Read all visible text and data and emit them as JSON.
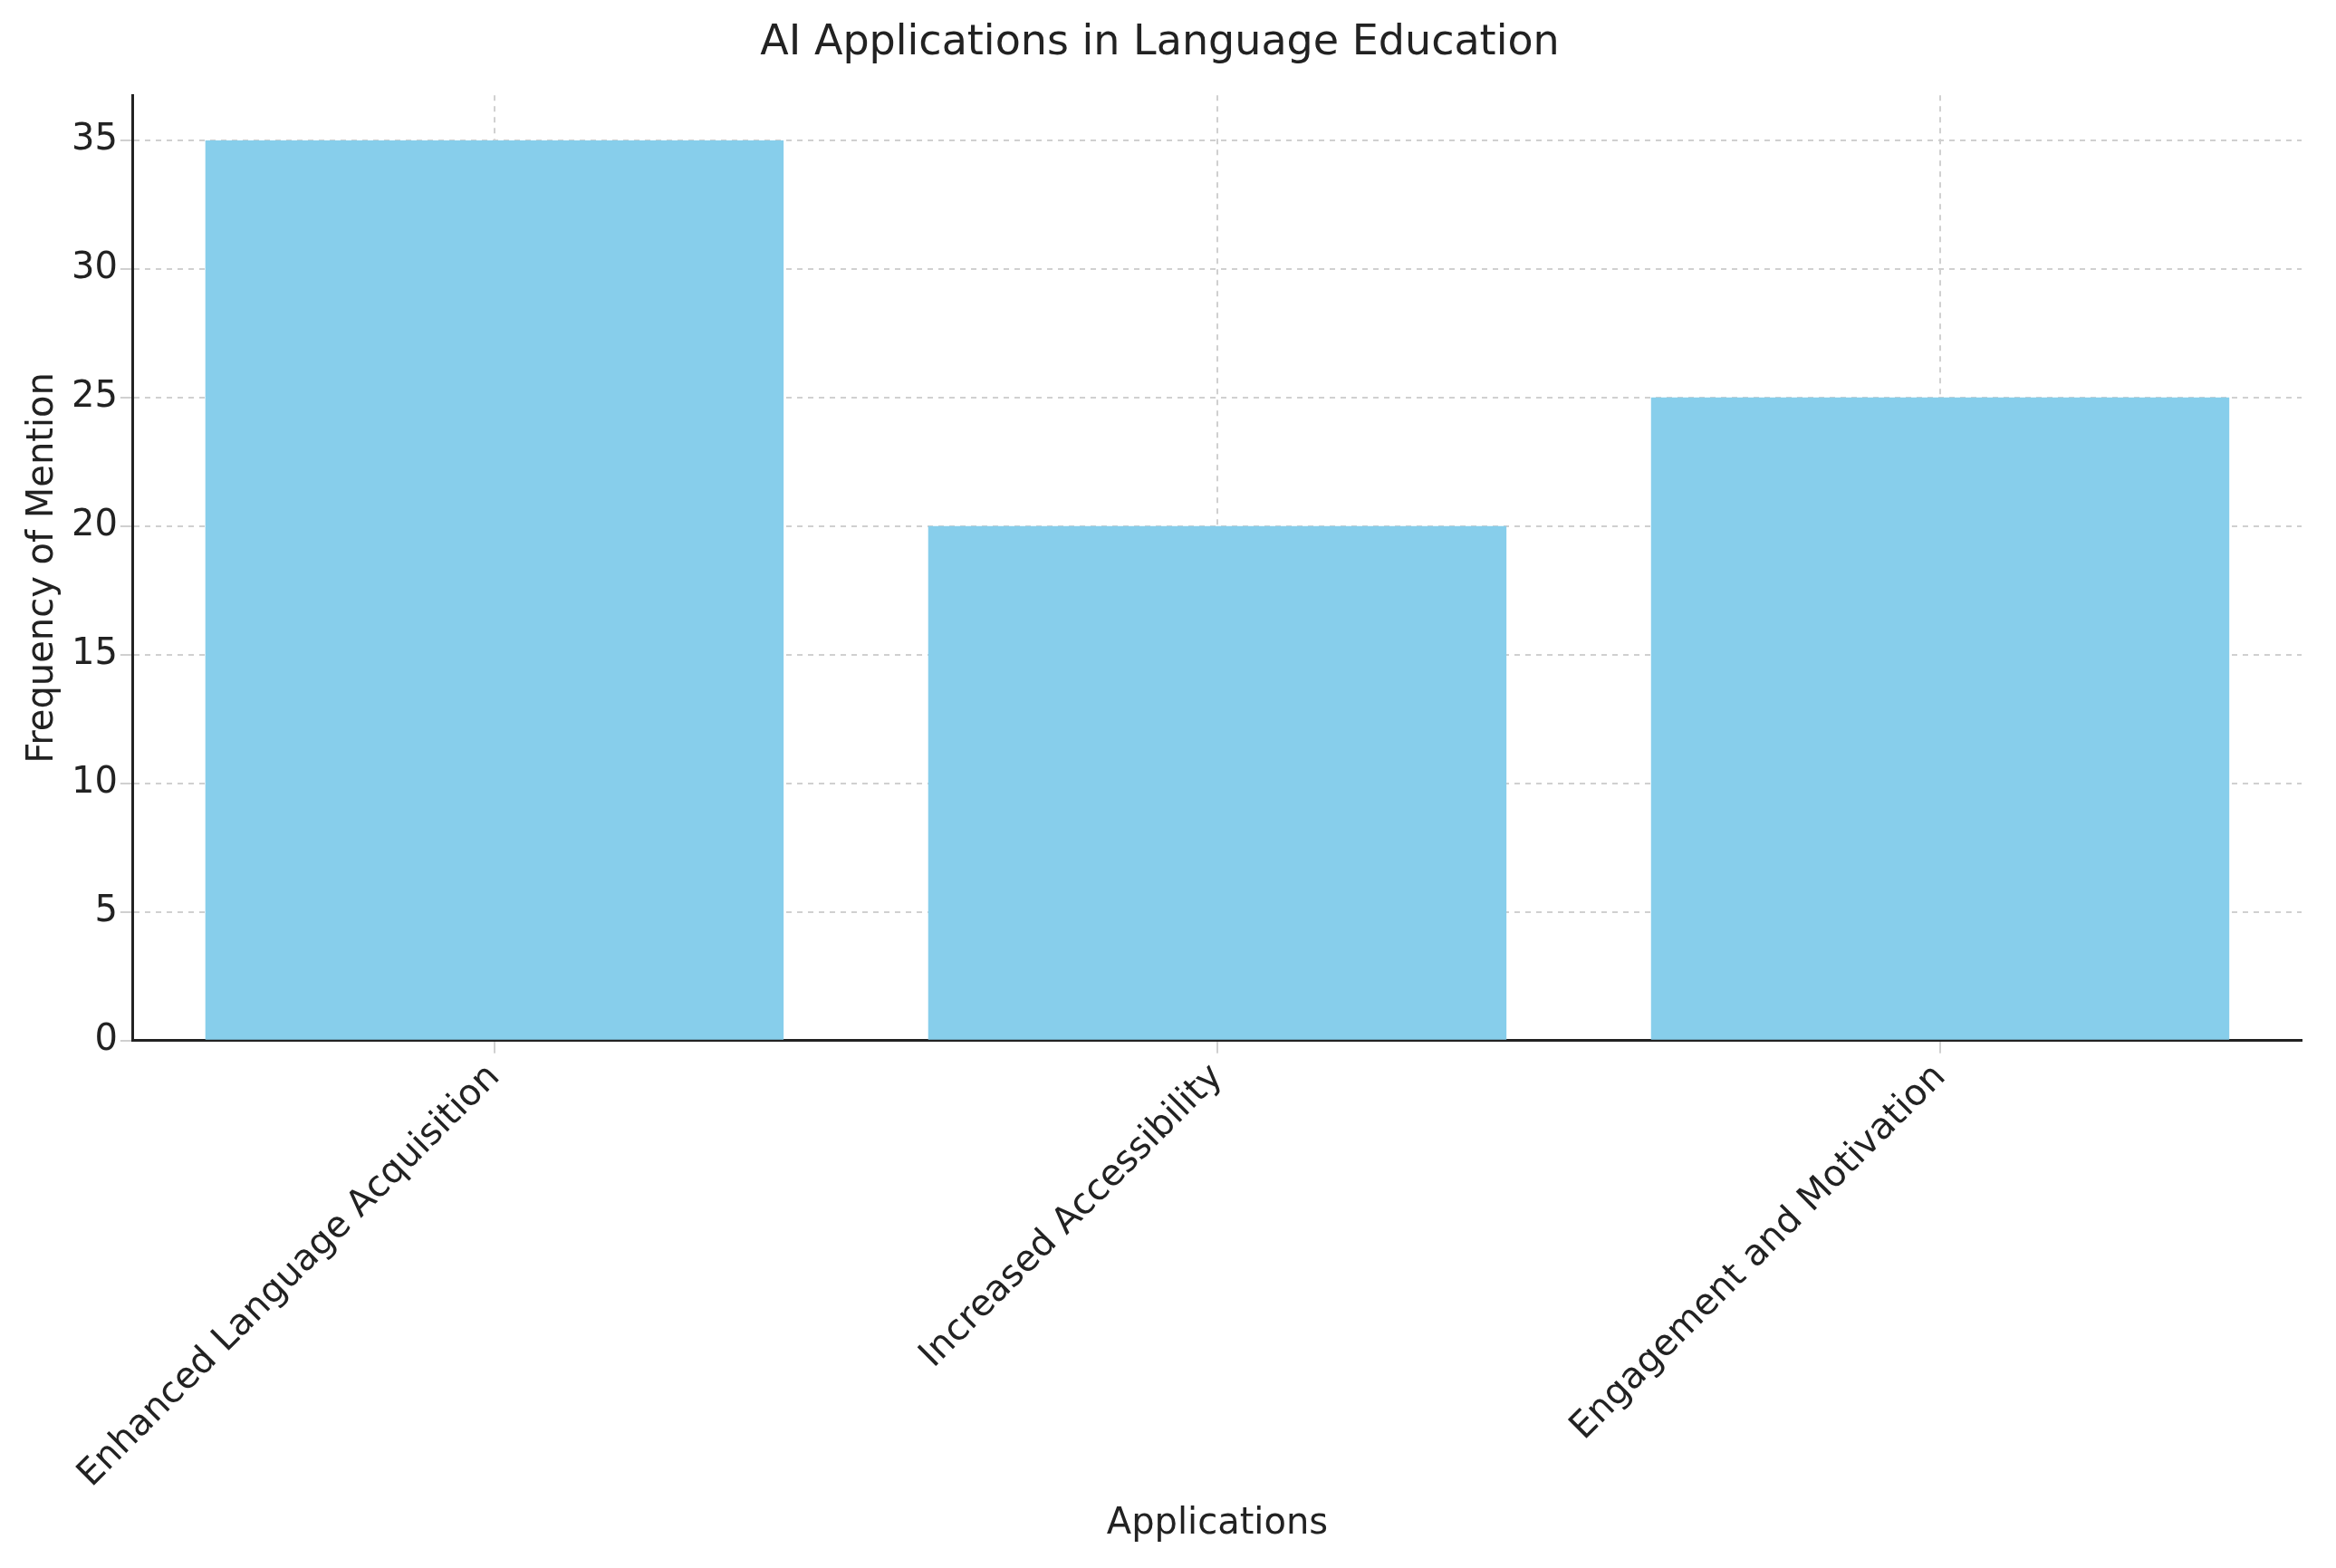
{
  "chart_data": {
    "type": "bar",
    "title": "AI Applications in Language Education",
    "xlabel": "Applications",
    "ylabel": "Frequency of Mention",
    "categories": [
      "Enhanced Language Acquisition",
      "Increased Accessibility",
      "Engagement and Motivation"
    ],
    "values": [
      35,
      20,
      25
    ],
    "color": "#87ceeb",
    "ylim": [
      0,
      36.75
    ],
    "yticks": [
      0,
      5,
      10,
      15,
      20,
      25,
      30,
      35
    ],
    "grid": true
  }
}
